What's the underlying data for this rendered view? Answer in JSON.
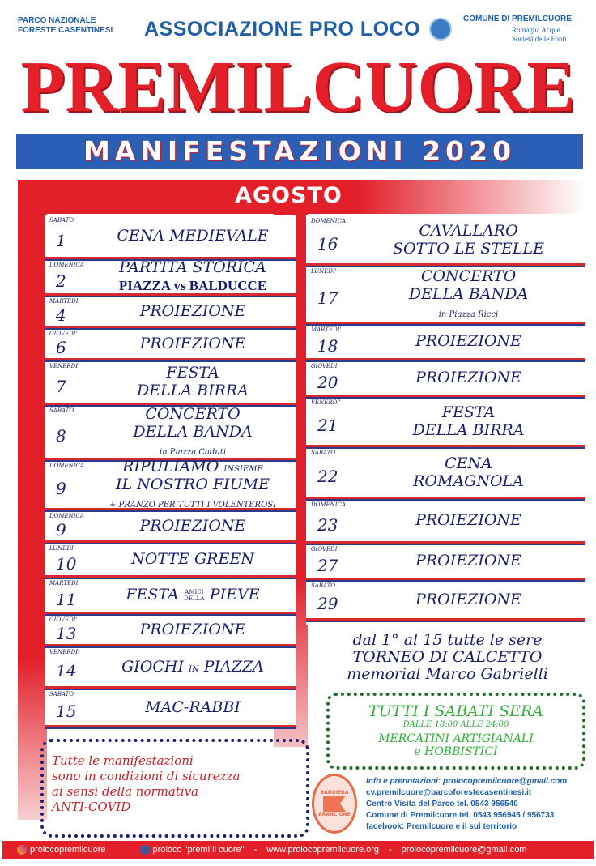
{
  "header": {
    "left_line1": "PARCO NAZIONALE",
    "left_line2": "FORESTE CASENTINESI",
    "association": "ASSOCIAZIONE PRO LOCO",
    "right_line1": "COMUNE DI PREMILCUORE",
    "right_sponsor1": "Romagna Acque",
    "right_sponsor2": "Società delle Fonti",
    "brand": "PREMILCUORE",
    "banner": "MANIFESTAZIONI 2020",
    "month": "AGOSTO"
  },
  "colors": {
    "red": "#e3202a",
    "blue": "#2a5fb5",
    "navy": "#1b1f6b",
    "green": "#2fae3a"
  },
  "events_left": [
    {
      "dow": "SABATO",
      "date": "1",
      "lines": [
        [
          {
            "t": "CENA MEDIEVALE"
          }
        ]
      ]
    },
    {
      "dow": "DOMENICA",
      "date": "2",
      "lines": [
        [
          {
            "t": "PARTITA STORICA"
          }
        ],
        [
          {
            "t": "PIAZZA vs BALDUCCE",
            "s": "bold"
          }
        ]
      ]
    },
    {
      "dow": "MARTEDI'",
      "date": "4",
      "lines": [
        [
          {
            "t": "PROIEZIONE"
          }
        ]
      ]
    },
    {
      "dow": "GIOVEDI'",
      "date": "6",
      "lines": [
        [
          {
            "t": "PROIEZIONE"
          }
        ]
      ]
    },
    {
      "dow": "VENERDI'",
      "date": "7",
      "lines": [
        [
          {
            "t": "FESTA"
          }
        ],
        [
          {
            "t": "DELLA BIRRA"
          }
        ]
      ]
    },
    {
      "dow": "SABATO",
      "date": "8",
      "lines": [
        [
          {
            "t": "CONCERTO"
          }
        ],
        [
          {
            "t": "DELLA BANDA"
          }
        ],
        [
          {
            "t": "in Piazza Caduti",
            "s": "note"
          }
        ]
      ]
    },
    {
      "dow": "DOMENICA",
      "date": "9",
      "lines": [
        [
          {
            "t": "RIPULIAMO "
          },
          {
            "t": "INSIEME",
            "s": "note"
          }
        ],
        [
          {
            "t": "IL NOSTRO FIUME"
          }
        ],
        [
          {
            "t": "+ PRANZO PER TUTTI I VOLENTEROSI",
            "s": "note"
          }
        ]
      ]
    },
    {
      "dow": "DOMENICA",
      "date": "9",
      "lines": [
        [
          {
            "t": "PROIEZIONE"
          }
        ]
      ]
    },
    {
      "dow": "LUNEDI'",
      "date": "10",
      "lines": [
        [
          {
            "t": "NOTTE GREEN"
          }
        ]
      ]
    },
    {
      "dow": "MARTEDI'",
      "date": "11",
      "lines": [
        [
          {
            "t": "FESTA "
          },
          {
            "t": "AMICI DELLA",
            "s": "tiny"
          },
          {
            "t": " PIEVE"
          }
        ]
      ]
    },
    {
      "dow": "GIOVEDI'",
      "date": "13",
      "lines": [
        [
          {
            "t": "PROIEZIONE"
          }
        ]
      ]
    },
    {
      "dow": "VENERDI'",
      "date": "14",
      "lines": [
        [
          {
            "t": "GIOCHI "
          },
          {
            "t": "IN",
            "s": "note"
          },
          {
            "t": " PIAZZA"
          }
        ]
      ]
    },
    {
      "dow": "SABATO",
      "date": "15",
      "lines": [
        [
          {
            "t": "MAC-RABBI"
          }
        ]
      ]
    }
  ],
  "events_right": [
    {
      "dow": "DOMENICA",
      "date": "16",
      "lines": [
        [
          {
            "t": "CAVALLARO"
          }
        ],
        [
          {
            "t": "SOTTO LE STELLE"
          }
        ]
      ]
    },
    {
      "dow": "LUNEDI'",
      "date": "17",
      "lines": [
        [
          {
            "t": "CONCERTO"
          }
        ],
        [
          {
            "t": "DELLA BANDA"
          }
        ],
        [
          {
            "t": "in Piazza Ricci",
            "s": "note"
          }
        ]
      ]
    },
    {
      "dow": "MARTEDI'",
      "date": "18",
      "lines": [
        [
          {
            "t": "PROIEZIONE"
          }
        ]
      ]
    },
    {
      "dow": "GIOVEDI'",
      "date": "20",
      "lines": [
        [
          {
            "t": "PROIEZIONE"
          }
        ]
      ]
    },
    {
      "dow": "VENERDI'",
      "date": "21",
      "lines": [
        [
          {
            "t": "FESTA"
          }
        ],
        [
          {
            "t": "DELLA BIRRA"
          }
        ]
      ]
    },
    {
      "dow": "SABATO",
      "date": "22",
      "lines": [
        [
          {
            "t": "CENA"
          }
        ],
        [
          {
            "t": "ROMAGNOLA"
          }
        ]
      ]
    },
    {
      "dow": "DOMENICA",
      "date": "23",
      "lines": [
        [
          {
            "t": "PROIEZIONE"
          }
        ]
      ]
    },
    {
      "dow": "GIOVEDI'",
      "date": "27",
      "lines": [
        [
          {
            "t": "PROIEZIONE"
          }
        ]
      ]
    },
    {
      "dow": "SABATO",
      "date": "29",
      "lines": [
        [
          {
            "t": "PROIEZIONE"
          }
        ]
      ]
    }
  ],
  "torneo": {
    "line1": "dal 1° al 15 tutte le sere",
    "line2": "TORNEO DI CALCETTO",
    "line3": "memorial Marco Gabrielli"
  },
  "sabati": {
    "title": "TUTTI I SABATI SERA",
    "hours": "DALLE 18:00 ALLE 24:00",
    "line1": "MERCATINI ARTIGIANALI",
    "line2": "e HOBBISTICI"
  },
  "covid": {
    "line1": "Tutte le manifestazioni",
    "line2": "sono in condizioni di sicurezza",
    "line3": "ai sensi della normativa",
    "line4": "ANTI-COVID"
  },
  "bandiera": {
    "top": "BANDIERA",
    "bottom": "ARANCIONE"
  },
  "info": {
    "line1": "info e prenotazioni:  prolocopremilcuore@gmail.com",
    "line2": "cv.premilcuore@parcoforestecasentinesi.it",
    "line3": "Centro Visita del Parco tel. 0543 956540",
    "line4": "Comune di Premilcuore tel. 0543 956945 / 956733",
    "line5": "facebook: Premilcuore e il sul territorio"
  },
  "footer": {
    "instagram": "prolocopremilcuore",
    "facebook": "proloco \"premi il cuore\"",
    "sep": "-",
    "website": "www.prolocopremilcuore.org",
    "email": "prolocopremilcuore@gmail.com"
  }
}
